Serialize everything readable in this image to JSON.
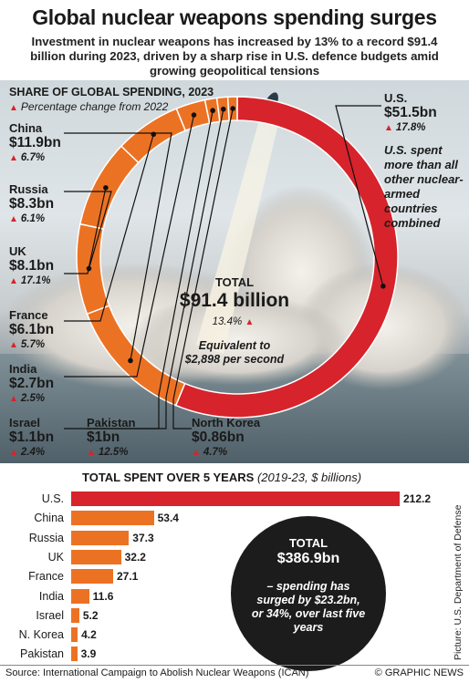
{
  "header": {
    "title": "Global nuclear weapons spending surges",
    "subtitle": "Investment in nuclear weapons has increased by 13% to a record $91.4 billion during 2023, driven by a sharp rise in U.S. defence budgets amid growing geopolitical tensions"
  },
  "colors": {
    "us": "#d7232b",
    "others": "#ec7223",
    "bubble": "#1c1c1c"
  },
  "chart_data": [
    {
      "type": "pie",
      "variant": "donut",
      "title": "SHARE OF GLOBAL SPENDING, 2023",
      "subtitle": "Percentage change from 2022",
      "unit": "$bn",
      "slices": [
        {
          "label": "U.S.",
          "value": 51.5,
          "value_label": "$51.5bn",
          "change": "17.8%"
        },
        {
          "label": "China",
          "value": 11.9,
          "value_label": "$11.9bn",
          "change": "6.7%"
        },
        {
          "label": "Russia",
          "value": 8.3,
          "value_label": "$8.3bn",
          "change": "6.1%"
        },
        {
          "label": "UK",
          "value": 8.1,
          "value_label": "$8.1bn",
          "change": "17.1%"
        },
        {
          "label": "France",
          "value": 6.1,
          "value_label": "$6.1bn",
          "change": "5.7%"
        },
        {
          "label": "India",
          "value": 2.7,
          "value_label": "$2.7bn",
          "change": "2.5%"
        },
        {
          "label": "Israel",
          "value": 1.1,
          "value_label": "$1.1bn",
          "change": "2.4%"
        },
        {
          "label": "Pakistan",
          "value": 1.0,
          "value_label": "$1bn",
          "change": "12.5%"
        },
        {
          "label": "North Korea",
          "value": 0.86,
          "value_label": "$0.86bn",
          "change": "4.7%"
        }
      ],
      "us_note": "U.S. spent more than all other nuclear-armed countries combined",
      "total_label": "TOTAL",
      "total_value": "$91.4 billion",
      "total_change": "13.4%",
      "equivalent": "Equivalent to $2,898 per second"
    },
    {
      "type": "bar",
      "orientation": "horizontal",
      "title": "TOTAL SPENT OVER 5 YEARS",
      "subtitle": "(2019-23, $ billions)",
      "categories": [
        "U.S.",
        "China",
        "Russia",
        "UK",
        "France",
        "India",
        "Israel",
        "N. Korea",
        "Pakistan"
      ],
      "values": [
        212.2,
        53.4,
        37.3,
        32.2,
        27.1,
        11.6,
        5.2,
        4.2,
        3.9
      ],
      "total_label": "TOTAL",
      "total_value": "$386.9bn",
      "total_note": "– spending has surged by $23.2bn, or 34%, over last five years"
    }
  ],
  "footer": {
    "source": "Source: International Campaign to Abolish Nuclear Weapons (ICAN)",
    "credit": "© GRAPHIC NEWS",
    "picture_credit": "Picture: U.S. Department of Defense"
  }
}
